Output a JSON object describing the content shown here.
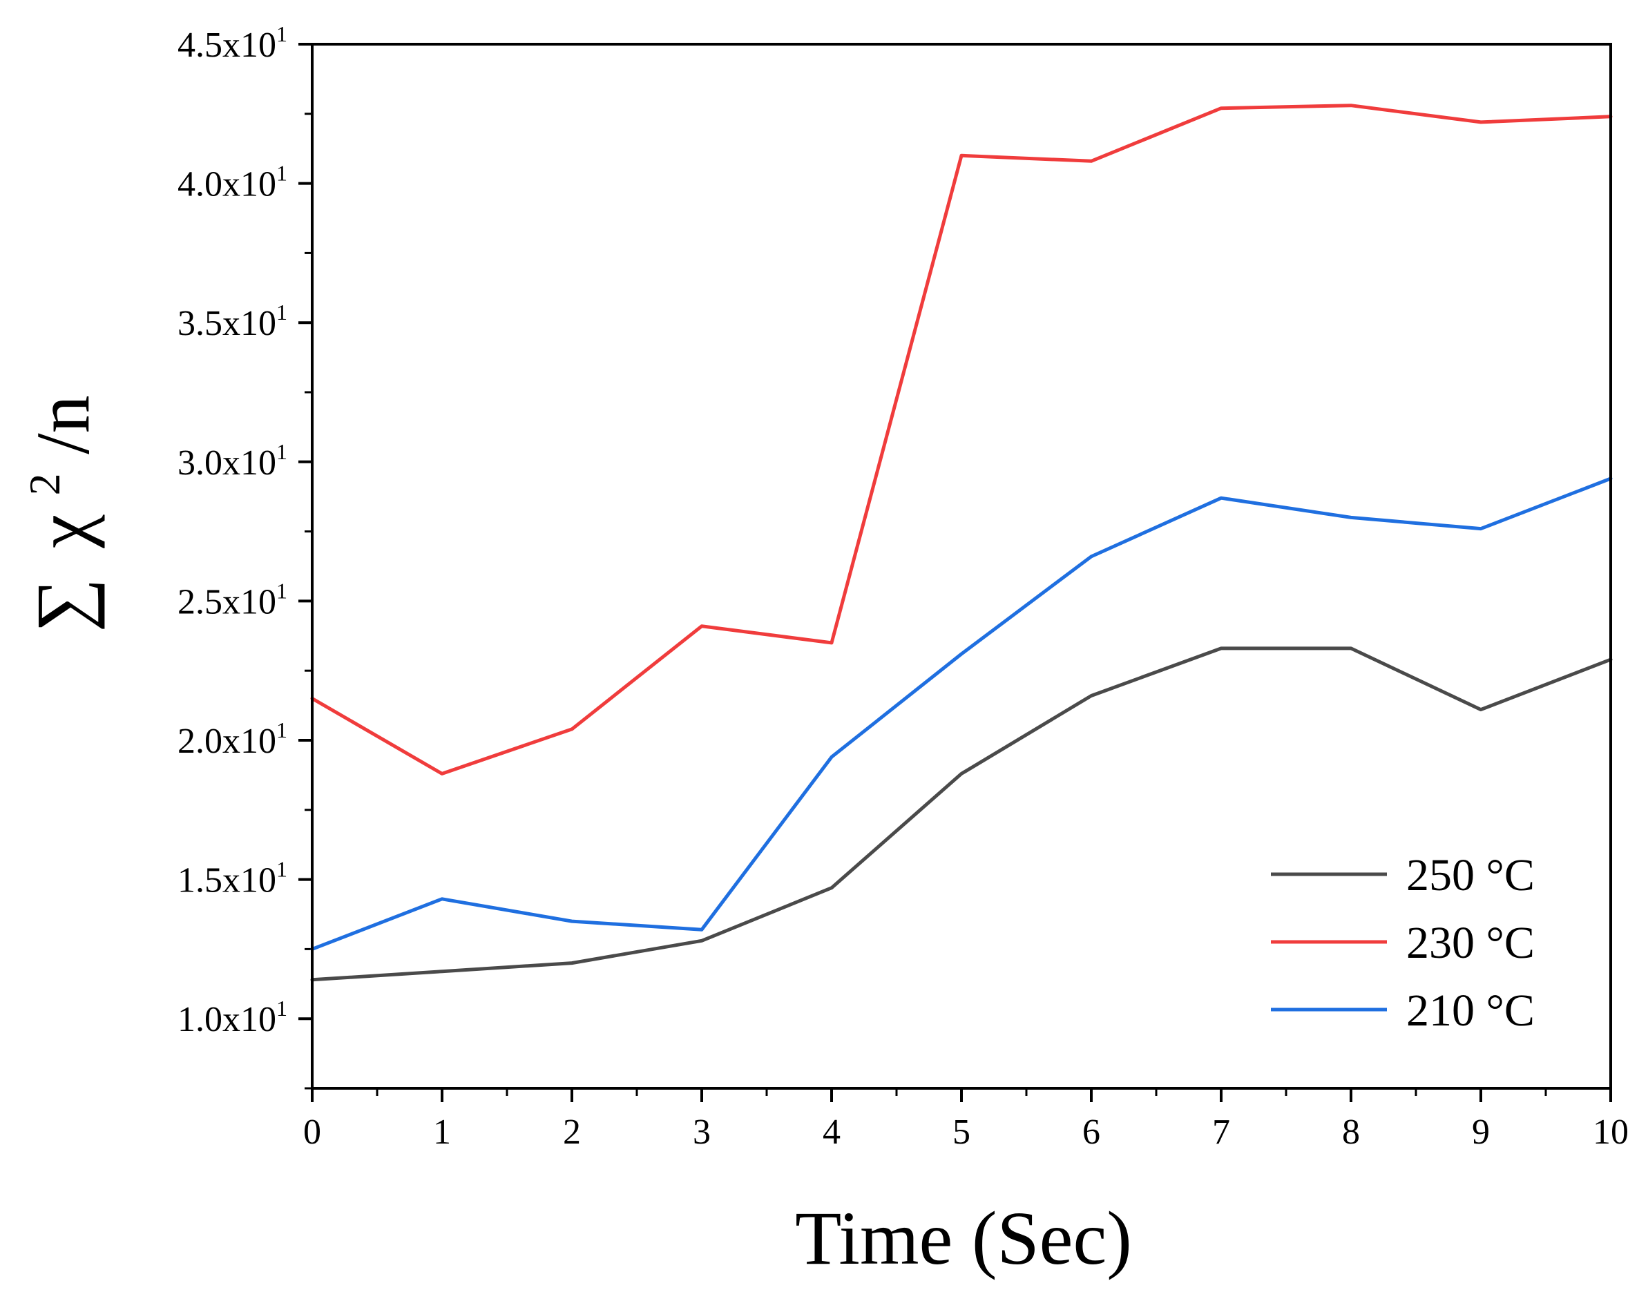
{
  "chart_data": {
    "type": "line",
    "title": "",
    "xlabel": "Time (Sec)",
    "ylabel": "∑ χ²/n",
    "ylabel_parts": {
      "sum": "∑",
      "chi": "χ",
      "sup": "2",
      "rest": "/n"
    },
    "xlim": [
      0,
      10
    ],
    "ylim": [
      7.5,
      45
    ],
    "x_ticks": [
      0,
      1,
      2,
      3,
      4,
      5,
      6,
      7,
      8,
      9,
      10
    ],
    "x_tick_labels": [
      "0",
      "1",
      "2",
      "3",
      "4",
      "5",
      "6",
      "7",
      "8",
      "9",
      "10"
    ],
    "y_ticks": [
      10,
      15,
      20,
      25,
      30,
      35,
      40,
      45
    ],
    "y_tick_labels": [
      {
        "mantissa": "1.0x10",
        "exp": "1"
      },
      {
        "mantissa": "1.5x10",
        "exp": "1"
      },
      {
        "mantissa": "2.0x10",
        "exp": "1"
      },
      {
        "mantissa": "2.5x10",
        "exp": "1"
      },
      {
        "mantissa": "3.0x10",
        "exp": "1"
      },
      {
        "mantissa": "3.5x10",
        "exp": "1"
      },
      {
        "mantissa": "4.0x10",
        "exp": "1"
      },
      {
        "mantissa": "4.5x10",
        "exp": "1"
      }
    ],
    "y_minor_step": 2.5,
    "x_minor_step": 0.5,
    "grid": false,
    "legend_position": "bottom-right",
    "x": [
      0,
      1,
      2,
      3,
      4,
      5,
      6,
      7,
      8,
      9,
      10
    ],
    "series": [
      {
        "name": "250 °C",
        "color": "#4a4a4a",
        "values": [
          11.4,
          11.7,
          12.0,
          12.8,
          14.7,
          18.8,
          21.6,
          23.3,
          23.3,
          21.1,
          22.9
        ]
      },
      {
        "name": "230 °C",
        "color": "#f03c3c",
        "values": [
          21.5,
          18.8,
          20.4,
          24.1,
          23.5,
          41.0,
          40.8,
          42.7,
          42.8,
          42.2,
          42.4
        ]
      },
      {
        "name": "210 °C",
        "color": "#1f6fe0",
        "values": [
          12.5,
          14.3,
          13.5,
          13.2,
          19.4,
          23.1,
          26.6,
          28.7,
          28.0,
          27.6,
          29.4
        ]
      }
    ]
  }
}
